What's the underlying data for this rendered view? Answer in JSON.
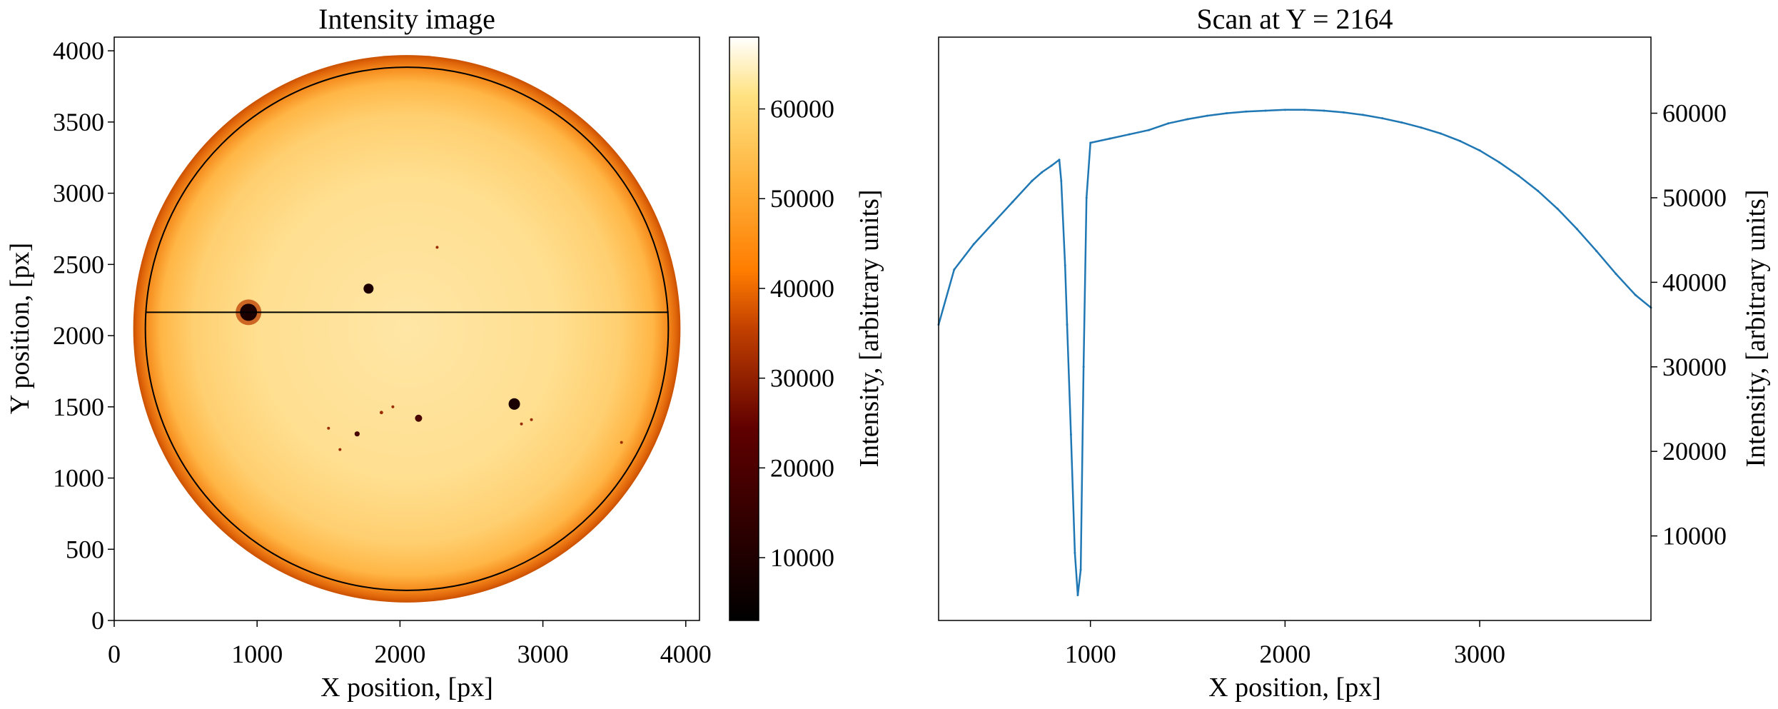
{
  "chart_data": [
    {
      "type": "heatmap",
      "title": "Intensity image",
      "xlabel": "X position, [px]",
      "ylabel": "Y position, [px]",
      "xlim": [
        0,
        4096
      ],
      "ylim": [
        0,
        4096
      ],
      "xticks": [
        0,
        1000,
        2000,
        3000,
        4000
      ],
      "yticks": [
        0,
        500,
        1000,
        1500,
        2000,
        2500,
        3000,
        3500,
        4000
      ],
      "disk": {
        "center": [
          2048,
          2048
        ],
        "radius": 1915
      },
      "fit_circle": {
        "center": [
          2048,
          2048
        ],
        "radius": 1830
      },
      "scan_line_y": 2164,
      "scan_line_x": [
        220,
        3880
      ],
      "sunspots": [
        {
          "x": 940,
          "y": 2164,
          "r": 60,
          "intensity": 4000
        },
        {
          "x": 1780,
          "y": 2330,
          "r": 35,
          "intensity": 12000
        },
        {
          "x": 2800,
          "y": 1520,
          "r": 40,
          "intensity": 10000
        },
        {
          "x": 2130,
          "y": 1420,
          "r": 25,
          "intensity": 18000
        },
        {
          "x": 1700,
          "y": 1310,
          "r": 18,
          "intensity": 22000
        },
        {
          "x": 1870,
          "y": 1460,
          "r": 12,
          "intensity": 26000
        },
        {
          "x": 1950,
          "y": 1500,
          "r": 10,
          "intensity": 28000
        },
        {
          "x": 1500,
          "y": 1350,
          "r": 10,
          "intensity": 30000
        },
        {
          "x": 1580,
          "y": 1200,
          "r": 8,
          "intensity": 30000
        },
        {
          "x": 2850,
          "y": 1380,
          "r": 10,
          "intensity": 28000
        },
        {
          "x": 2920,
          "y": 1410,
          "r": 8,
          "intensity": 30000
        },
        {
          "x": 3550,
          "y": 1250,
          "r": 8,
          "intensity": 30000
        },
        {
          "x": 2260,
          "y": 2620,
          "r": 8,
          "intensity": 32000
        }
      ],
      "colorbar": {
        "label": "Intensity, [arbitrary units]",
        "range": [
          3000,
          68000
        ],
        "ticks": [
          10000,
          20000,
          30000,
          40000,
          50000,
          60000
        ],
        "colormap": "afmhot"
      }
    },
    {
      "type": "line",
      "title": "Scan at Y = 2164",
      "xlabel": "X position, [px]",
      "ylabel": "Intensity, [arbitrary units]",
      "xlim": [
        220,
        3880
      ],
      "ylim": [
        0,
        69000
      ],
      "xticks": [
        1000,
        2000,
        3000
      ],
      "yticks": [
        10000,
        20000,
        30000,
        40000,
        50000,
        60000
      ],
      "y_axis_side": "right",
      "color": "#1f77b4",
      "series": [
        {
          "x": [
            220,
            300,
            400,
            500,
            600,
            700,
            750,
            800,
            840,
            850,
            870,
            880,
            900,
            920,
            935,
            950,
            965,
            980,
            1000,
            1100,
            1200,
            1300,
            1400,
            1500,
            1600,
            1700,
            1800,
            1900,
            2000,
            2100,
            2200,
            2300,
            2400,
            2500,
            2600,
            2700,
            2800,
            2900,
            3000,
            3100,
            3200,
            3300,
            3400,
            3500,
            3600,
            3700,
            3800,
            3880
          ],
          "values": [
            35000,
            41500,
            44500,
            47000,
            49500,
            52000,
            53000,
            53800,
            54500,
            52000,
            42000,
            35000,
            22000,
            8000,
            3000,
            6000,
            30000,
            50000,
            56500,
            57000,
            57500,
            58000,
            58800,
            59300,
            59700,
            60000,
            60200,
            60300,
            60400,
            60400,
            60300,
            60100,
            59800,
            59400,
            58900,
            58300,
            57600,
            56700,
            55600,
            54200,
            52600,
            50800,
            48700,
            46300,
            43700,
            41000,
            38500,
            37000
          ]
        }
      ]
    }
  ]
}
